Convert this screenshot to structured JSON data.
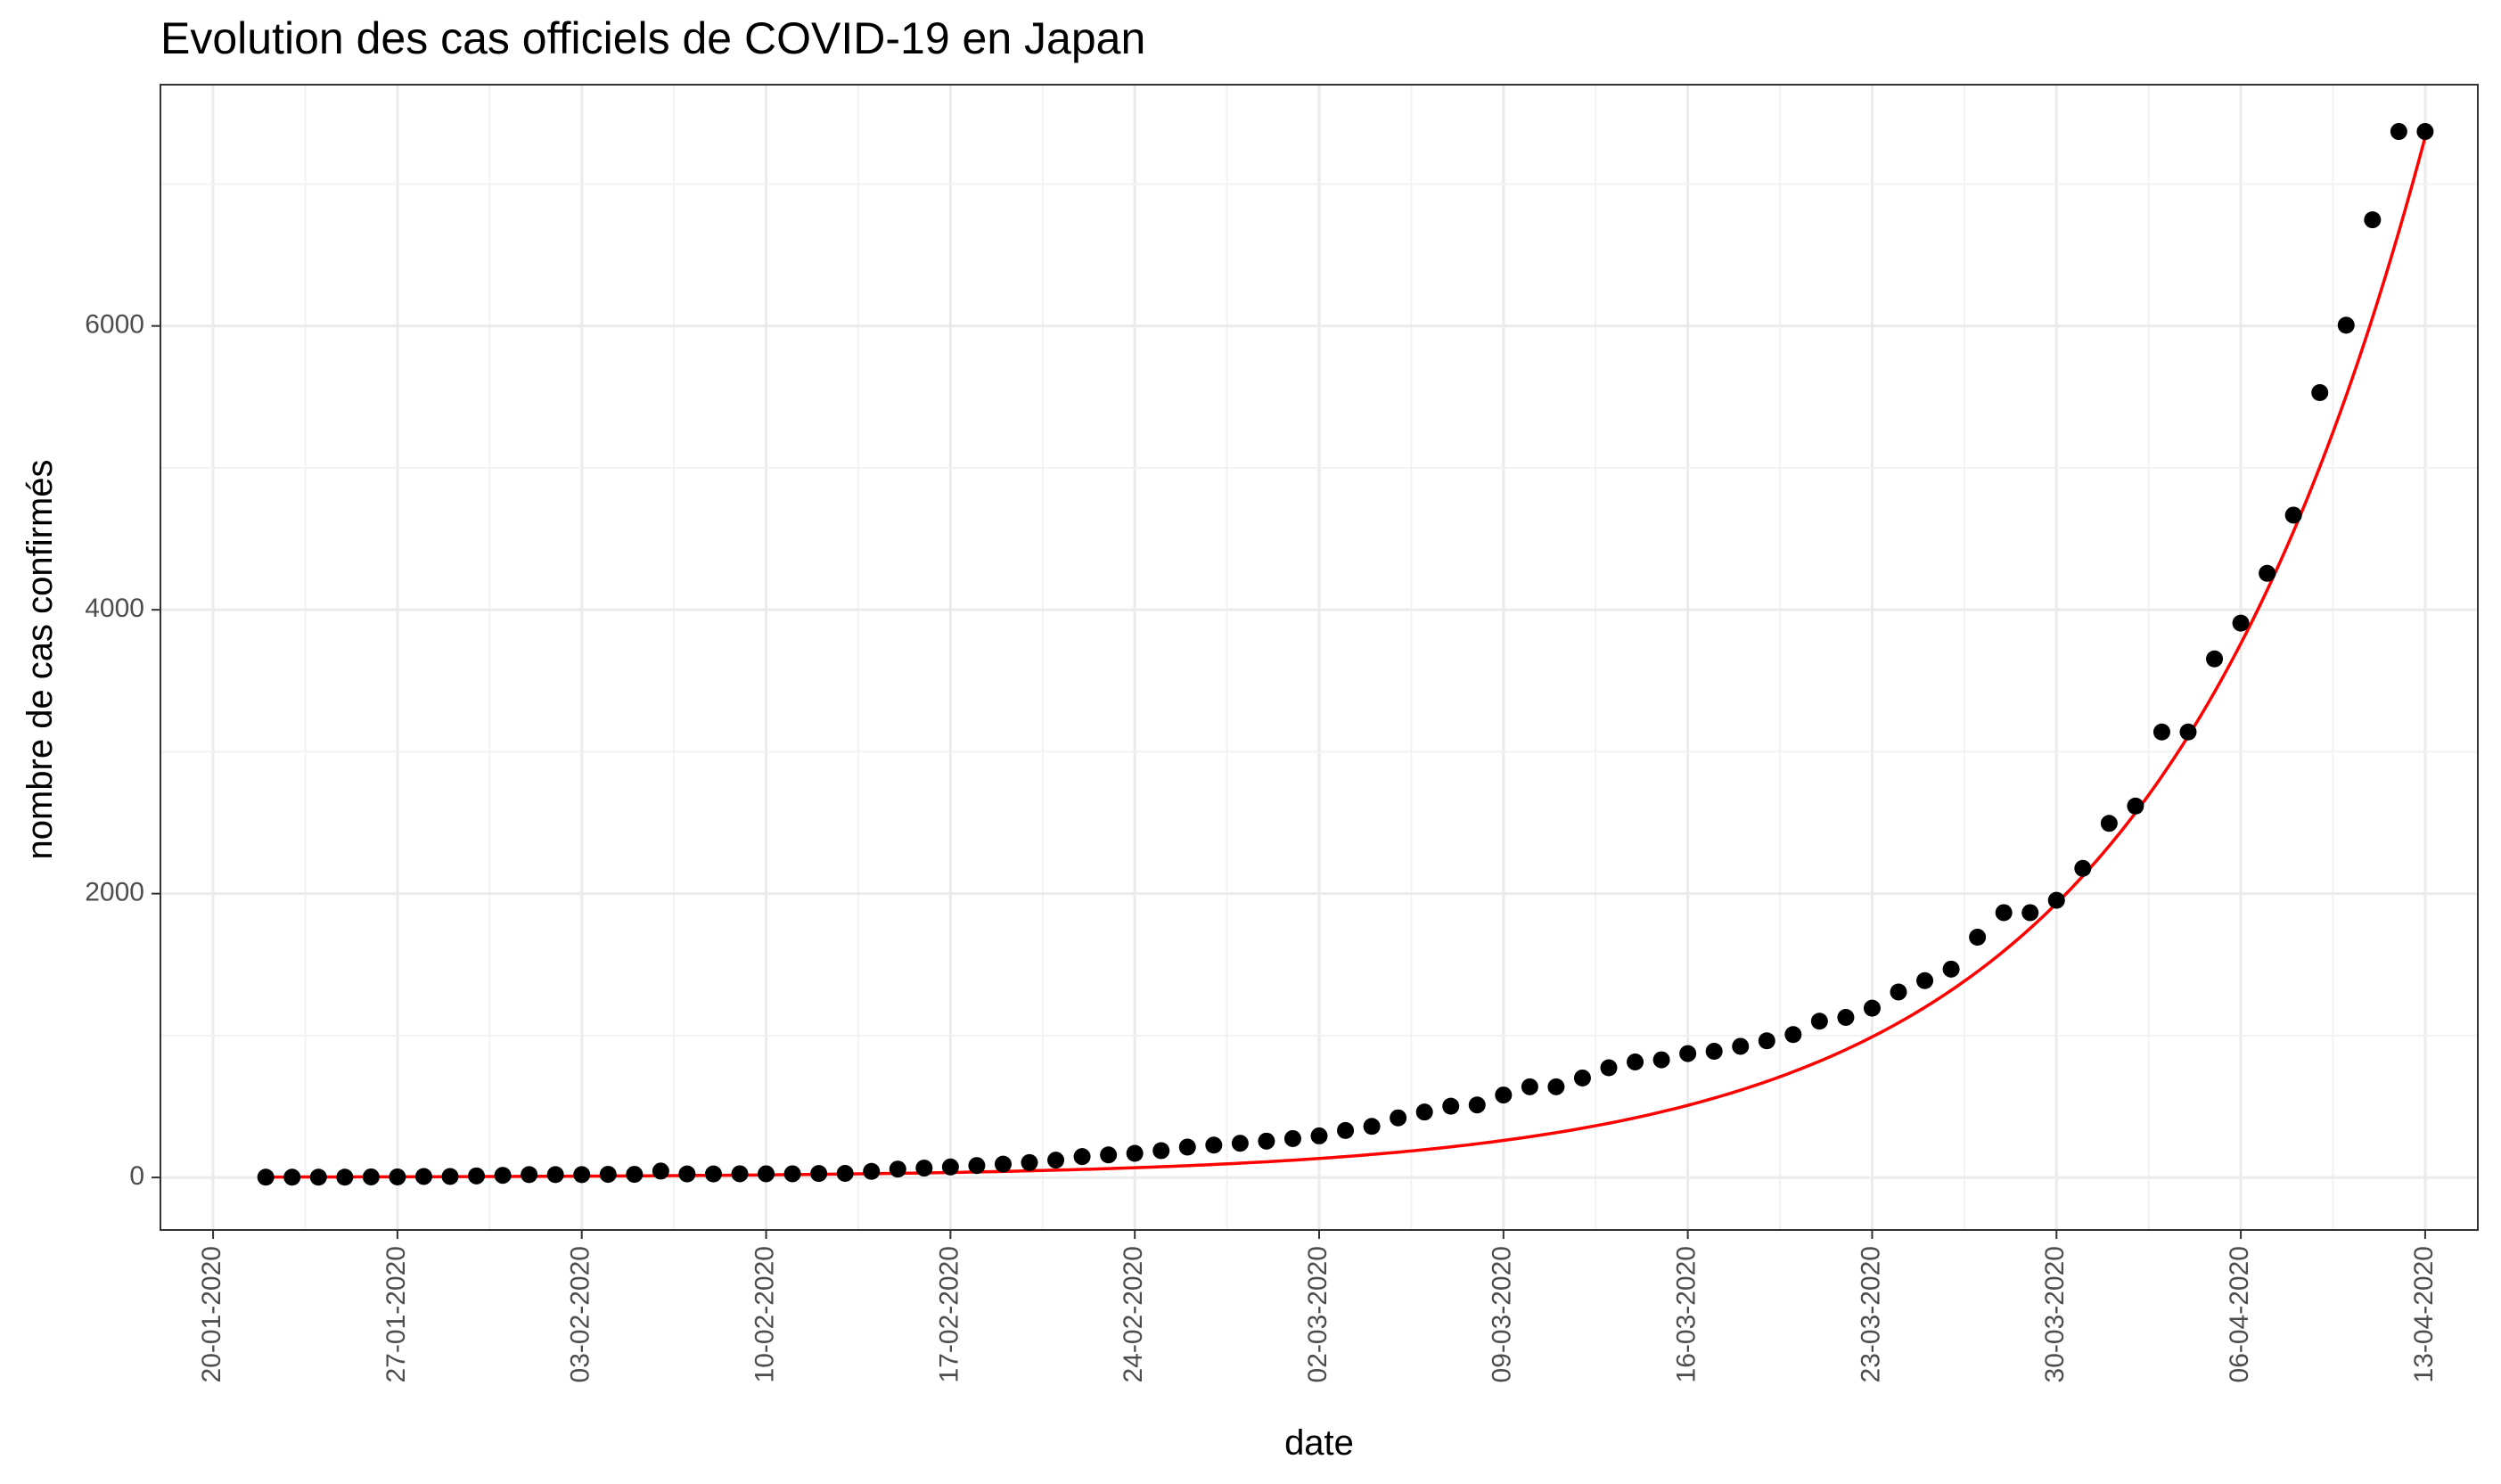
{
  "chart_data": {
    "type": "scatter",
    "title": "Evolution des cas officiels de COVID-19 en Japan",
    "xlabel": "date",
    "ylabel": "nombre de cas confirmés",
    "x_ticks": [
      "20-01-2020",
      "27-01-2020",
      "03-02-2020",
      "10-02-2020",
      "17-02-2020",
      "24-02-2020",
      "02-03-2020",
      "09-03-2020",
      "16-03-2020",
      "23-03-2020",
      "30-03-2020",
      "06-04-2020",
      "13-04-2020"
    ],
    "y_ticks": [
      "0",
      "2000",
      "4000",
      "6000"
    ],
    "x_range": [
      "2020-01-18",
      "2020-04-15"
    ],
    "ylim": [
      -370,
      7700
    ],
    "grid": true,
    "series": [
      {
        "type": "points",
        "color": "#000000",
        "x": [
          "2020-01-22",
          "2020-01-23",
          "2020-01-24",
          "2020-01-25",
          "2020-01-26",
          "2020-01-27",
          "2020-01-28",
          "2020-01-29",
          "2020-01-30",
          "2020-01-31",
          "2020-02-01",
          "2020-02-02",
          "2020-02-03",
          "2020-02-04",
          "2020-02-05",
          "2020-02-06",
          "2020-02-07",
          "2020-02-08",
          "2020-02-09",
          "2020-02-10",
          "2020-02-11",
          "2020-02-12",
          "2020-02-13",
          "2020-02-14",
          "2020-02-15",
          "2020-02-16",
          "2020-02-17",
          "2020-02-18",
          "2020-02-19",
          "2020-02-20",
          "2020-02-21",
          "2020-02-22",
          "2020-02-23",
          "2020-02-24",
          "2020-02-25",
          "2020-02-26",
          "2020-02-27",
          "2020-02-28",
          "2020-02-29",
          "2020-03-01",
          "2020-03-02",
          "2020-03-03",
          "2020-03-04",
          "2020-03-05",
          "2020-03-06",
          "2020-03-07",
          "2020-03-08",
          "2020-03-09",
          "2020-03-10",
          "2020-03-11",
          "2020-03-12",
          "2020-03-13",
          "2020-03-14",
          "2020-03-15",
          "2020-03-16",
          "2020-03-17",
          "2020-03-18",
          "2020-03-19",
          "2020-03-20",
          "2020-03-21",
          "2020-03-22",
          "2020-03-23",
          "2020-03-24",
          "2020-03-25",
          "2020-03-26",
          "2020-03-27",
          "2020-03-28",
          "2020-03-29",
          "2020-03-30",
          "2020-03-31",
          "2020-04-01",
          "2020-04-02",
          "2020-04-03",
          "2020-04-04",
          "2020-04-05",
          "2020-04-06",
          "2020-04-07",
          "2020-04-08",
          "2020-04-09",
          "2020-04-10",
          "2020-04-11",
          "2020-04-12",
          "2020-04-13"
        ],
        "y": [
          2,
          2,
          2,
          2,
          4,
          4,
          7,
          7,
          11,
          15,
          20,
          20,
          20,
          22,
          22,
          45,
          25,
          25,
          26,
          26,
          26,
          28,
          29,
          43,
          59,
          66,
          74,
          84,
          94,
          105,
          122,
          147,
          159,
          170,
          189,
          214,
          228,
          241,
          256,
          274,
          293,
          331,
          360,
          420,
          461,
          502,
          511,
          581,
          639,
          639,
          701,
          773,
          814,
          829,
          873,
          889,
          924,
          963,
          1007,
          1101,
          1128,
          1193,
          1307,
          1387,
          1468,
          1693,
          1866,
          1866,
          1953,
          2178,
          2495,
          2617,
          3139,
          3139,
          3654,
          3906,
          4257,
          4667,
          5530,
          6005,
          6748,
          7370,
          7370
        ]
      },
      {
        "type": "curve",
        "color": "#ff0000",
        "model": "exponential",
        "x_start": "2020-01-22",
        "x_end": "2020-04-13",
        "a": 2.96,
        "b": 0.0953
      }
    ]
  }
}
